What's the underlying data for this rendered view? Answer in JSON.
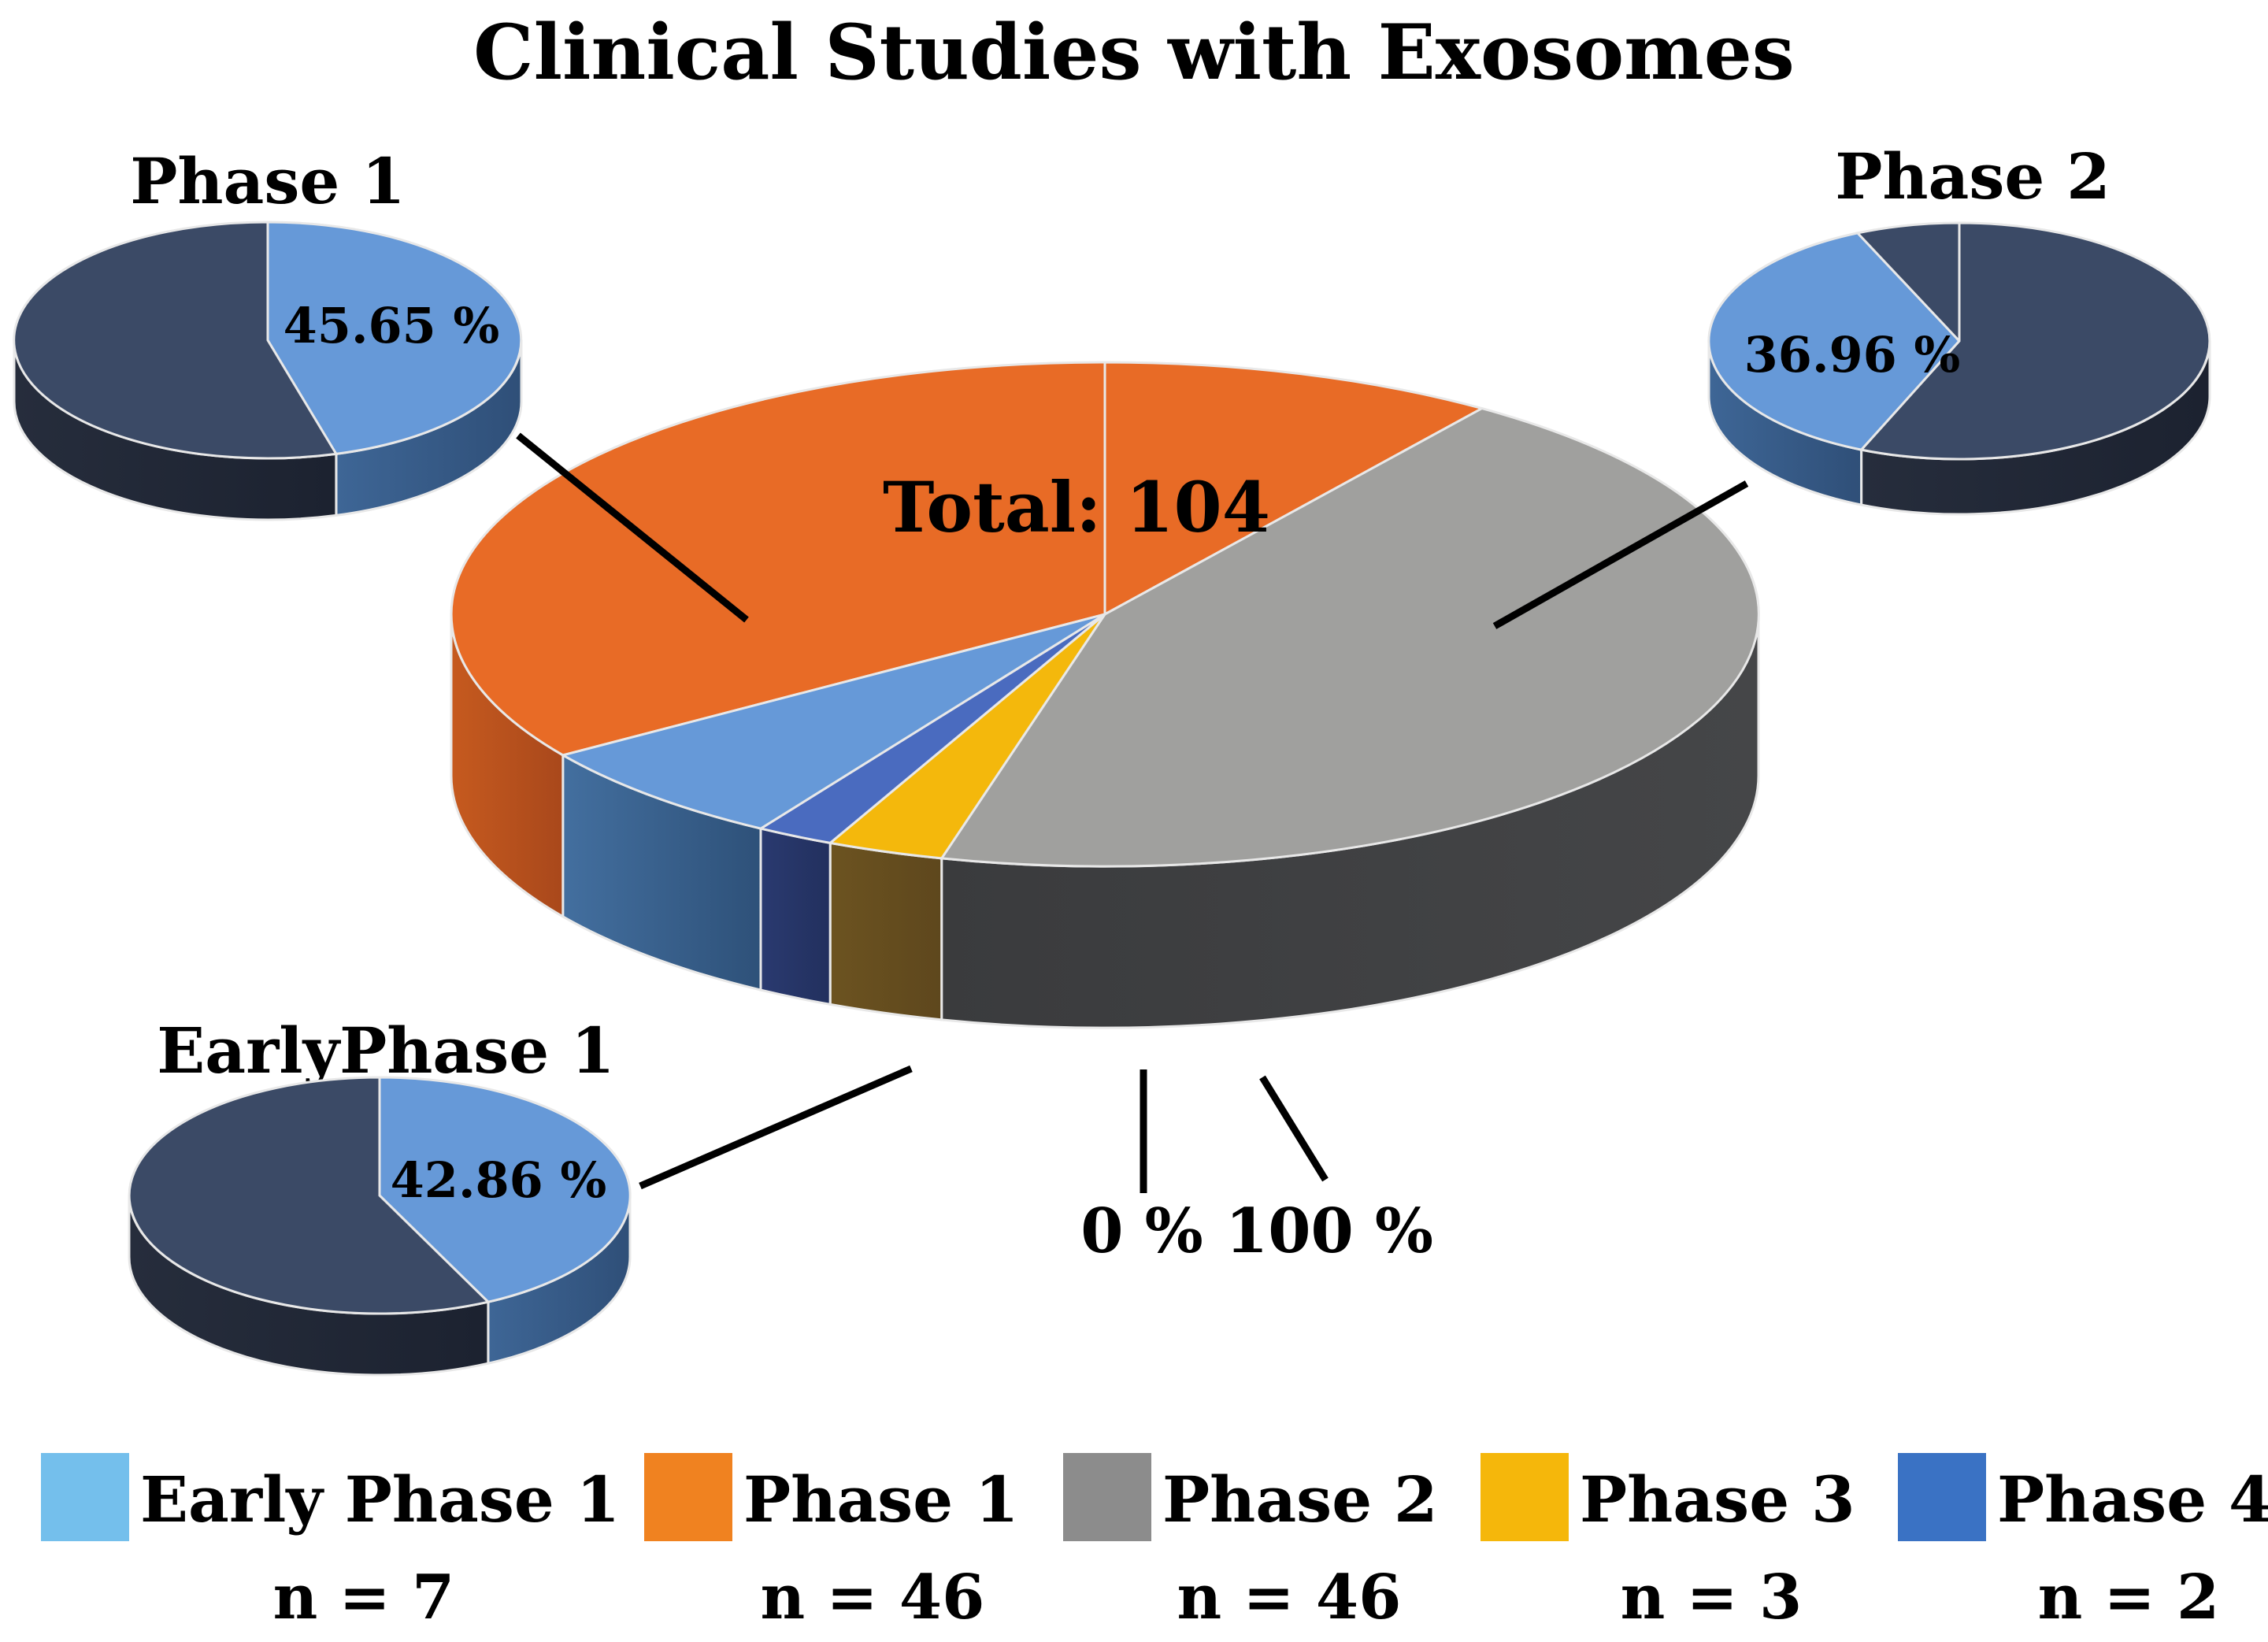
{
  "chart_data": {
    "type": "pie",
    "title": "Clinical Studies with Exosomes",
    "total_label": "Total: 104",
    "total": 104,
    "slices": [
      {
        "name": "Early Phase 1",
        "n_label": "n = 7",
        "value": 7,
        "color": "#6699d8",
        "side_color": "#3e6696"
      },
      {
        "name": "Phase 1",
        "n_label": "n = 46",
        "value": 46,
        "color": "#e86b26",
        "side_color": "#b9521d"
      },
      {
        "name": "Phase 2",
        "n_label": "n = 46",
        "value": 46,
        "color": "#a0a09e",
        "side_color": "#3e3f41"
      },
      {
        "name": "Phase 3",
        "n_label": "n = 3",
        "value": 3,
        "color": "#f4b80c",
        "side_color": "#6b5222"
      },
      {
        "name": "Phase 4",
        "n_label": "n = 2",
        "value": 2,
        "color": "#4a6bbf",
        "side_color": "#243464"
      }
    ],
    "legend": [
      {
        "label": "Early Phase 1",
        "n_label": "n = 7",
        "color": "#74bfec"
      },
      {
        "label": "Phase 1",
        "n_label": "n = 46",
        "color": "#f08220"
      },
      {
        "label": "Phase 2",
        "n_label": "n = 46",
        "color": "#8c8c8c"
      },
      {
        "label": "Phase 3",
        "n_label": "n = 3",
        "color": "#f5b70b"
      },
      {
        "label": "Phase 4",
        "n_label": "n = 2",
        "color": "#3a72c4"
      }
    ],
    "sub_pies": [
      {
        "key": "phase1",
        "title": "Phase 1",
        "percent": 45.65,
        "percent_label": "45.65 %"
      },
      {
        "key": "phase2",
        "title": "Phase 2",
        "percent": 36.96,
        "percent_label": "36.96 %"
      },
      {
        "key": "early",
        "title": "EarlyPhase 1",
        "percent": 42.86,
        "percent_label": "42.86 %"
      }
    ],
    "callouts": [
      {
        "key": "phase4",
        "label": "0 %"
      },
      {
        "key": "phase3",
        "label": "100 %"
      }
    ],
    "sub_colors": {
      "highlight": "#6699d8",
      "highlight_side": "#3e6696",
      "rest": "#3b4a66",
      "rest_side": "#262d3c"
    }
  }
}
